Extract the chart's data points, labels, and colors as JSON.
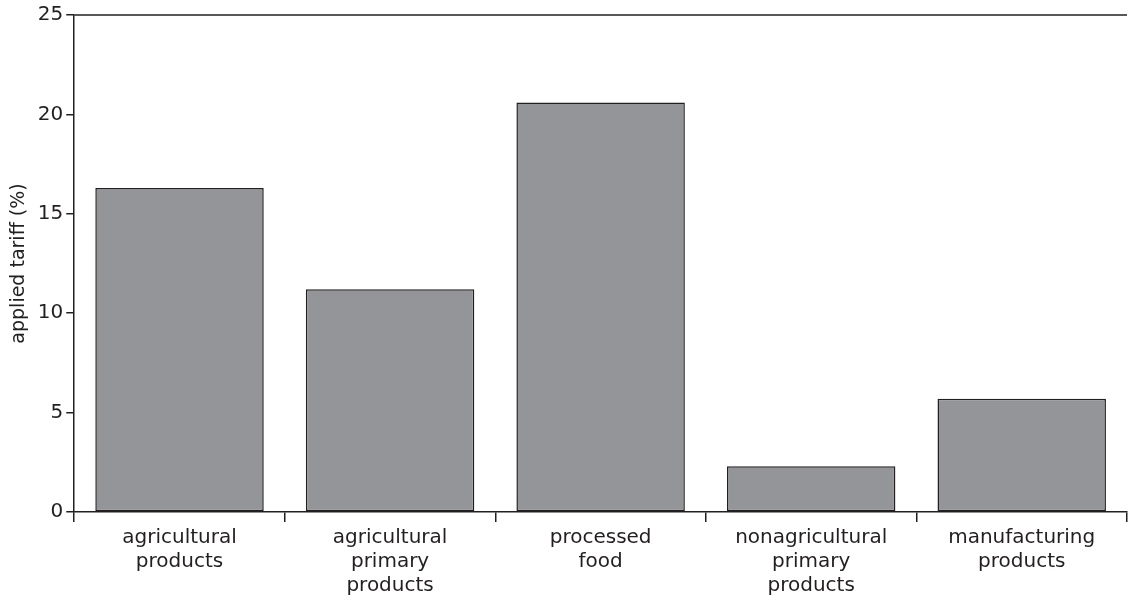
{
  "chart_data": {
    "type": "bar",
    "ylabel": "applied tariff (%)",
    "categories": [
      "agricultural products",
      "agricultural primary products",
      "processed food",
      "nonagricultural primary products",
      "manufacturing products"
    ],
    "values": [
      16.3,
      11.2,
      20.6,
      2.3,
      5.7
    ],
    "color": "#939598",
    "ylim": [
      0,
      25
    ],
    "yticks": [
      0,
      5,
      10,
      15,
      20,
      25
    ],
    "grid": false,
    "legend": false
  }
}
